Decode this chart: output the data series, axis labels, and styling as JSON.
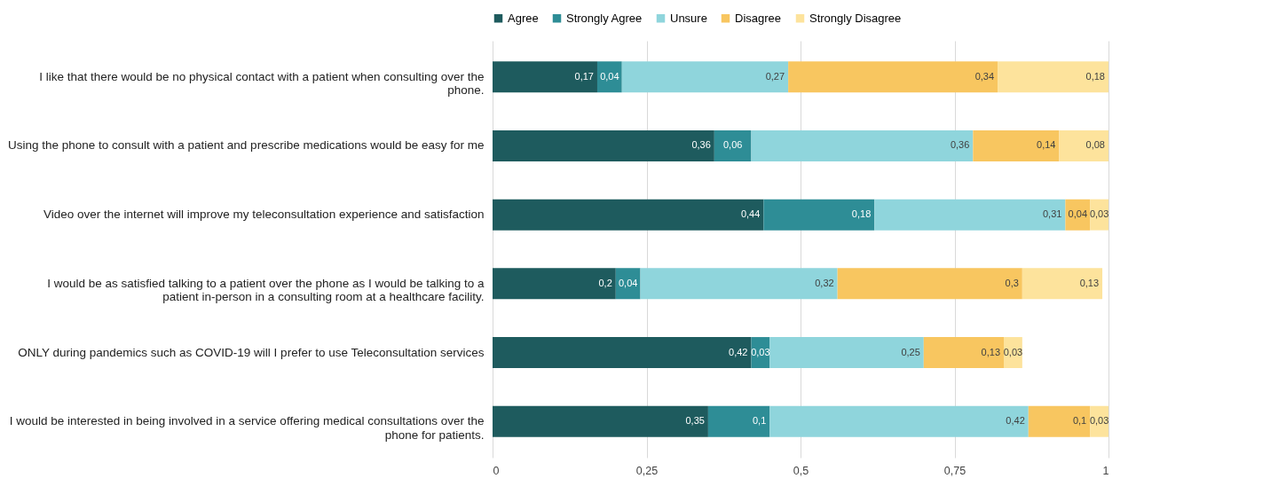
{
  "chart_data": {
    "type": "bar",
    "orientation": "horizontal",
    "stacked": true,
    "categories": [
      "I like that there would be no physical contact with a patient when consulting over the phone.",
      "Using the phone to consult with a patient and prescribe medications would be easy for me",
      "Video over the internet will improve my teleconsultation experience and satisfaction",
      "I would be as satisfied talking to a patient over the phone as I would be talking to a patient in-person in a consulting room at a healthcare facility.",
      "ONLY during pandemics such as COVID-19 will I prefer to use Teleconsultation services",
      "I would be interested in being involved in a service offering medical consultations over the phone for patients."
    ],
    "series": [
      {
        "name": "Agree",
        "color": "#1e5b5e",
        "values": [
          0.17,
          0.36,
          0.44,
          0.2,
          0.42,
          0.35
        ],
        "value_labels": [
          "0,17",
          "0,36",
          "0,44",
          "0,2",
          "0,42",
          "0,35"
        ]
      },
      {
        "name": "Strongly Agree",
        "color": "#2e8d96",
        "values": [
          0.04,
          0.06,
          0.18,
          0.04,
          0.03,
          0.1
        ],
        "value_labels": [
          "0,04",
          "0,06",
          "0,18",
          "0,04",
          "0,03",
          "0,1"
        ]
      },
      {
        "name": "Unsure",
        "color": "#8fd5dc",
        "values": [
          0.27,
          0.36,
          0.31,
          0.32,
          0.25,
          0.42
        ],
        "value_labels": [
          "0,27",
          "0,36",
          "0,31",
          "0,32",
          "0,25",
          "0,42"
        ]
      },
      {
        "name": "Disagree",
        "color": "#f8c660",
        "values": [
          0.34,
          0.14,
          0.04,
          0.3,
          0.13,
          0.1
        ],
        "value_labels": [
          "0,34",
          "0,14",
          "0,04",
          "0,3",
          "0,13",
          "0,1"
        ]
      },
      {
        "name": "Strongly Disagree",
        "color": "#fde39c",
        "values": [
          0.18,
          0.08,
          0.03,
          0.13,
          0.03,
          0.03
        ],
        "value_labels": [
          "0,18",
          "0,08",
          "0,03",
          "0,13",
          "0,03",
          "0,03"
        ]
      }
    ],
    "xlim": [
      0,
      1
    ],
    "xticks": [
      0,
      {
        "value": 0.25,
        "label": "0,25"
      },
      {
        "value": 0.5,
        "label": "0,5"
      },
      {
        "value": 0.75,
        "label": "0,75"
      },
      1
    ],
    "grid": "x",
    "legend": "top"
  }
}
